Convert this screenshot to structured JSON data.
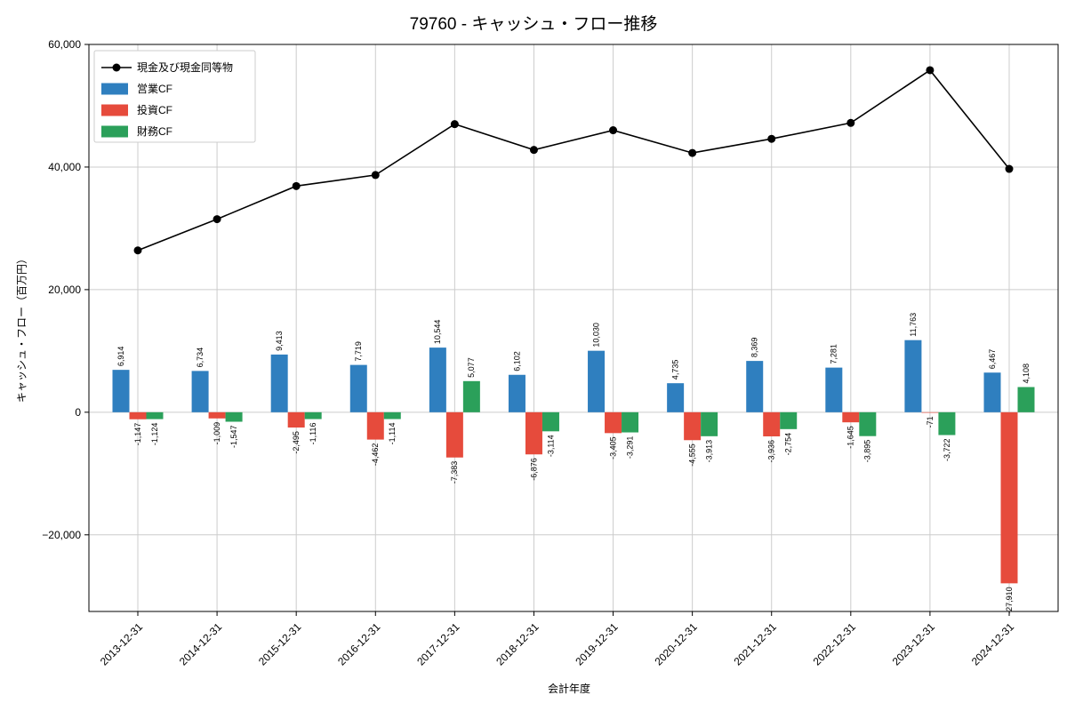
{
  "title": "79760 - キャッシュ・フロー推移",
  "chart_data": {
    "type": "bar",
    "title": "79760 - キャッシュ・フロー推移",
    "xlabel": "会計年度",
    "ylabel": "キャッシュ・フロー（百万円）",
    "ylim": [
      -32500,
      60000
    ],
    "yticks": [
      -20000,
      0,
      20000,
      40000,
      60000
    ],
    "grid": true,
    "legend_position": "upper left",
    "categories": [
      "2013-12-31",
      "2014-12-31",
      "2015-12-31",
      "2016-12-31",
      "2017-12-31",
      "2018-12-31",
      "2019-12-31",
      "2020-12-31",
      "2021-12-31",
      "2022-12-31",
      "2023-12-31",
      "2024-12-31"
    ],
    "series": [
      {
        "name": "現金及び現金同等物",
        "type": "line",
        "color": "#000000",
        "values": [
          26400,
          31500,
          36900,
          38700,
          47000,
          42800,
          46000,
          42300,
          44600,
          47200,
          55800,
          39700
        ]
      },
      {
        "name": "営業CF",
        "type": "bar",
        "color": "#2f7fbf",
        "values": [
          6914,
          6734,
          9413,
          7719,
          10544,
          6102,
          10030,
          4735,
          8369,
          7281,
          11763,
          6467
        ]
      },
      {
        "name": "投資CF",
        "type": "bar",
        "color": "#e64b3c",
        "values": [
          -1147,
          -1009,
          -2495,
          -4462,
          -7383,
          -6876,
          -3405,
          -4555,
          -3936,
          -1645,
          -71,
          -27910
        ]
      },
      {
        "name": "財務CF",
        "type": "bar",
        "color": "#2ba05a",
        "values": [
          -1124,
          -1547,
          -1116,
          -1114,
          5077,
          -3114,
          -3291,
          -3913,
          -2754,
          -3895,
          -3722,
          4108
        ]
      }
    ]
  }
}
